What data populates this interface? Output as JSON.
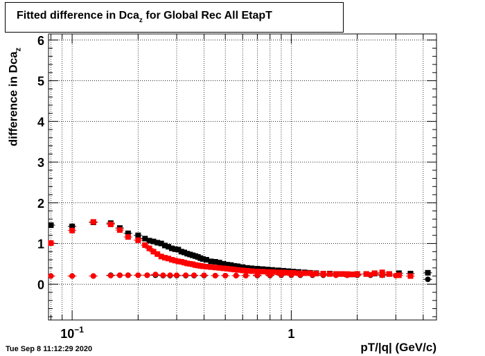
{
  "chart_data": {
    "type": "scatter",
    "title_main": "Fitted difference in Dca",
    "title_sub": "z",
    "title_rest": " for Global Rec All EtapT",
    "ylabel_main": "difference in Dca",
    "ylabel_sub": "z",
    "xlabel": "pT/|q| (GeV/c)",
    "x_scale": "log",
    "xlim": [
      0.078,
      4.6
    ],
    "ylim": [
      -0.88,
      6.15
    ],
    "grid": true,
    "yticks": [
      "0",
      "1",
      "2",
      "3",
      "4",
      "5",
      "6"
    ],
    "xticks": [
      {
        "value": 0.1,
        "base": "10",
        "exp": "−1"
      },
      {
        "value": 1,
        "base": "1",
        "exp": ""
      }
    ],
    "series": [
      {
        "color": "#000000",
        "marker": "square",
        "x": [
          0.08,
          0.1,
          0.125,
          0.15,
          0.165,
          0.18,
          0.2,
          0.215,
          0.225,
          0.235,
          0.245,
          0.255,
          0.265,
          0.275,
          0.285,
          0.295,
          0.305,
          0.315,
          0.325,
          0.335,
          0.345,
          0.355,
          0.365,
          0.375,
          0.385,
          0.395,
          0.41,
          0.43,
          0.45,
          0.47,
          0.49,
          0.51,
          0.53,
          0.55,
          0.57,
          0.6,
          0.63,
          0.66,
          0.7,
          0.74,
          0.78,
          0.82,
          0.87,
          0.92,
          0.97,
          1.02,
          1.08,
          1.15,
          1.22,
          1.3,
          1.4,
          1.5,
          1.6,
          1.7,
          1.8,
          1.9,
          2.0,
          2.2,
          2.4,
          2.6,
          2.8,
          3.1,
          3.5,
          4.2
        ],
        "y": [
          1.45,
          1.42,
          1.52,
          1.5,
          1.38,
          1.25,
          1.2,
          1.12,
          1.07,
          1.05,
          1.02,
          1.0,
          0.95,
          0.92,
          0.88,
          0.86,
          0.85,
          0.8,
          0.78,
          0.75,
          0.73,
          0.71,
          0.69,
          0.67,
          0.64,
          0.62,
          0.6,
          0.56,
          0.55,
          0.53,
          0.5,
          0.48,
          0.47,
          0.45,
          0.44,
          0.42,
          0.4,
          0.39,
          0.38,
          0.37,
          0.36,
          0.35,
          0.34,
          0.33,
          0.32,
          0.31,
          0.3,
          0.29,
          0.28,
          0.27,
          0.26,
          0.26,
          0.25,
          0.25,
          0.24,
          0.24,
          0.25,
          0.25,
          0.26,
          0.23,
          0.25,
          0.27,
          0.26,
          0.28
        ],
        "yerr": [
          0.04,
          0.05,
          0.03,
          0.03,
          0.03,
          0.03,
          0.02,
          0.02,
          0.02,
          0.02,
          0.02,
          0.02,
          0.02,
          0.02,
          0.02,
          0.02,
          0.02,
          0.02,
          0.02,
          0.02,
          0.02,
          0.02,
          0.02,
          0.02,
          0.02,
          0.02,
          0.02,
          0.02,
          0.02,
          0.02,
          0.02,
          0.02,
          0.02,
          0.02,
          0.02,
          0.02,
          0.02,
          0.02,
          0.02,
          0.02,
          0.02,
          0.02,
          0.02,
          0.02,
          0.02,
          0.02,
          0.02,
          0.02,
          0.02,
          0.02,
          0.02,
          0.02,
          0.02,
          0.02,
          0.02,
          0.02,
          0.02,
          0.02,
          0.02,
          0.02,
          0.02,
          0.02,
          0.02,
          0.03
        ]
      },
      {
        "color": "#000000",
        "marker": "circle",
        "x": [
          0.08,
          0.1,
          0.125,
          0.15,
          0.165,
          0.18,
          0.2,
          0.22,
          0.24,
          0.26,
          0.28,
          0.3,
          0.33,
          0.36,
          0.4,
          0.45,
          0.5,
          0.56,
          0.62,
          0.7,
          0.8,
          0.9,
          1.0,
          1.1,
          1.25,
          1.4,
          1.6,
          1.8,
          2.0,
          2.3,
          2.6,
          3.0,
          3.5,
          4.2
        ],
        "y": [
          0.2,
          0.2,
          0.2,
          0.22,
          0.22,
          0.22,
          0.22,
          0.22,
          0.22,
          0.21,
          0.21,
          0.21,
          0.21,
          0.21,
          0.21,
          0.21,
          0.21,
          0.21,
          0.21,
          0.21,
          0.21,
          0.22,
          0.22,
          0.22,
          0.22,
          0.22,
          0.22,
          0.22,
          0.22,
          0.22,
          0.22,
          0.21,
          0.2,
          0.12
        ]
      },
      {
        "color": "#ff0000",
        "marker": "square",
        "x": [
          0.08,
          0.1,
          0.125,
          0.15,
          0.165,
          0.18,
          0.2,
          0.215,
          0.225,
          0.235,
          0.245,
          0.255,
          0.265,
          0.275,
          0.285,
          0.295,
          0.305,
          0.315,
          0.325,
          0.335,
          0.345,
          0.355,
          0.365,
          0.375,
          0.385,
          0.395,
          0.41,
          0.43,
          0.45,
          0.47,
          0.49,
          0.51,
          0.53,
          0.55,
          0.57,
          0.6,
          0.63,
          0.66,
          0.7,
          0.74,
          0.78,
          0.82,
          0.87,
          0.92,
          0.97,
          1.02,
          1.08,
          1.15,
          1.22,
          1.3,
          1.4,
          1.5,
          1.6,
          1.7,
          1.8,
          1.9,
          2.0,
          2.2,
          2.4,
          2.6,
          2.8,
          3.1,
          3.5
        ],
        "y": [
          1.01,
          1.32,
          1.53,
          1.47,
          1.33,
          1.16,
          1.08,
          0.96,
          0.88,
          0.8,
          0.74,
          0.68,
          0.65,
          0.63,
          0.6,
          0.58,
          0.56,
          0.55,
          0.53,
          0.51,
          0.5,
          0.49,
          0.47,
          0.46,
          0.45,
          0.44,
          0.43,
          0.42,
          0.41,
          0.4,
          0.39,
          0.38,
          0.37,
          0.36,
          0.35,
          0.34,
          0.33,
          0.32,
          0.31,
          0.31,
          0.3,
          0.3,
          0.29,
          0.29,
          0.28,
          0.28,
          0.27,
          0.27,
          0.27,
          0.26,
          0.26,
          0.25,
          0.25,
          0.25,
          0.25,
          0.24,
          0.25,
          0.25,
          0.27,
          0.29,
          0.25,
          0.22,
          0.2
        ],
        "yerr": [
          0.04,
          0.05,
          0.03,
          0.03,
          0.03,
          0.03,
          0.02,
          0.02,
          0.02,
          0.02,
          0.02,
          0.02,
          0.02,
          0.02,
          0.02,
          0.02,
          0.02,
          0.02,
          0.02,
          0.02,
          0.02,
          0.02,
          0.02,
          0.02,
          0.02,
          0.02,
          0.02,
          0.02,
          0.02,
          0.02,
          0.02,
          0.02,
          0.02,
          0.02,
          0.02,
          0.02,
          0.02,
          0.02,
          0.02,
          0.02,
          0.02,
          0.02,
          0.02,
          0.02,
          0.02,
          0.02,
          0.02,
          0.02,
          0.02,
          0.02,
          0.02,
          0.02,
          0.02,
          0.02,
          0.02,
          0.02,
          0.02,
          0.02,
          0.02,
          0.02,
          0.02,
          0.02,
          0.02
        ]
      },
      {
        "color": "#ff0000",
        "marker": "circle",
        "x": [
          0.08,
          0.1,
          0.125,
          0.15,
          0.165,
          0.18,
          0.2,
          0.22,
          0.24,
          0.26,
          0.28,
          0.3,
          0.33,
          0.36,
          0.4,
          0.45,
          0.5,
          0.56,
          0.62,
          0.7,
          0.8,
          0.9,
          1.0,
          1.1,
          1.25,
          1.4,
          1.6,
          1.8,
          2.0,
          2.3,
          2.6,
          3.0,
          3.5
        ],
        "y": [
          0.2,
          0.2,
          0.2,
          0.21,
          0.22,
          0.22,
          0.22,
          0.22,
          0.24,
          0.22,
          0.22,
          0.22,
          0.22,
          0.22,
          0.22,
          0.21,
          0.21,
          0.21,
          0.21,
          0.22,
          0.22,
          0.23,
          0.23,
          0.23,
          0.23,
          0.23,
          0.22,
          0.22,
          0.23,
          0.23,
          0.22,
          0.21,
          0.2
        ]
      }
    ]
  },
  "timestamp": "Tue Sep  8 11:12:29 2020"
}
